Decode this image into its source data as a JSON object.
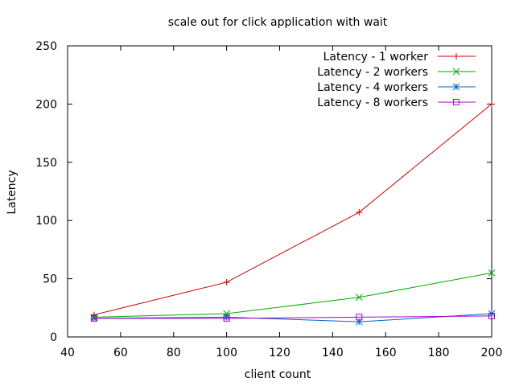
{
  "chart_data": {
    "type": "line",
    "title": "scale out for click application with wait",
    "xlabel": "client count",
    "ylabel": "Latency",
    "xlim": [
      40,
      200
    ],
    "ylim": [
      0,
      250
    ],
    "xticks": [
      40,
      60,
      80,
      100,
      120,
      140,
      160,
      180,
      200
    ],
    "yticks": [
      0,
      50,
      100,
      150,
      200,
      250
    ],
    "grid": false,
    "legend_position": "top-right",
    "x": [
      50,
      100,
      150,
      200
    ],
    "series": [
      {
        "name": "Latency - 1 worker",
        "values": [
          19,
          47,
          107,
          200
        ],
        "color": "#cc0000",
        "marker": "plus"
      },
      {
        "name": "Latency - 2 workers",
        "values": [
          17,
          20,
          34,
          55
        ],
        "color": "#00aa00",
        "marker": "cross"
      },
      {
        "name": "Latency - 4 workers",
        "values": [
          16,
          17,
          13,
          20
        ],
        "color": "#0066cc",
        "marker": "star"
      },
      {
        "name": "Latency - 8 workers",
        "values": [
          16,
          16,
          17,
          18
        ],
        "color": "#aa00cc",
        "marker": "square"
      }
    ]
  }
}
